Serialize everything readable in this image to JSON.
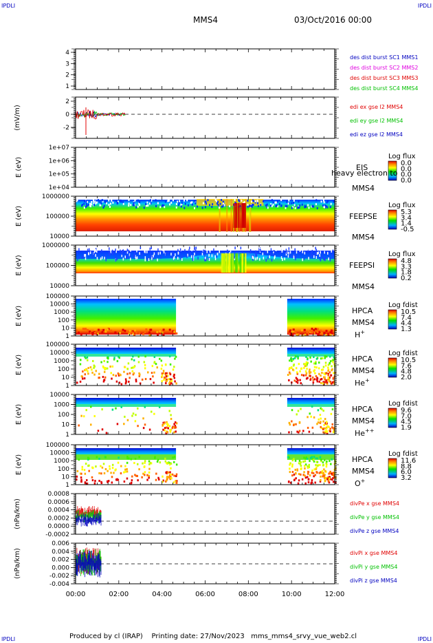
{
  "corner_label": "IPDLI",
  "header": {
    "spacecraft": "MMS4",
    "datetime": "03/Oct/2016 00:00"
  },
  "footer": "Produced by cl (IRAP)    Printing date: 27/Nov/2023   mms_mms4_srvy_vue_web2.cl",
  "colors": {
    "red": "#e00000",
    "green": "#00d000",
    "blue": "#0000c0",
    "magenta": "#e000e0",
    "dark_green": "#00c000"
  },
  "chart_data": [
    {
      "type": "line",
      "id": "burst",
      "yticks": [
        "4",
        "3",
        "2",
        "1"
      ],
      "ylim": [
        0.5,
        4.5
      ],
      "ylabel": "",
      "legend": [
        {
          "text": "des dist burst SC1 MMS1",
          "color": "#0000c0"
        },
        {
          "text": "des dist burst SC2 MMS2",
          "color": "#e000e0"
        },
        {
          "text": "des dist burst SC3 MMS3",
          "color": "#e00000"
        },
        {
          "text": "des dist burst SC4 MMS4",
          "color": "#00c000"
        }
      ]
    },
    {
      "type": "line",
      "id": "edi",
      "ylabel": "(mV/m)",
      "yticks": [
        "2",
        "0",
        "-2"
      ],
      "ylim": [
        -3,
        3
      ],
      "zero_line": true,
      "data_until_hour": 2.3,
      "legend": [
        {
          "text": "edi ex gse l2 MMS4",
          "color": "#e00000"
        },
        {
          "text": "edi ey gse l2 MMS4",
          "color": "#00c000"
        },
        {
          "text": "edi ez gse l2 MMS4",
          "color": "#0000c0"
        }
      ]
    },
    {
      "type": "heatmap",
      "id": "eis",
      "ylabel": "E (eV)",
      "yticks": [
        "1e+07",
        "1e+06",
        "1e+05",
        "1e+04"
      ],
      "instrument": "EIS",
      "spacecraft": "MMS4",
      "overlay_text": "heavy electron to",
      "colorbar": {
        "title": "Log flux",
        "ticks": [
          "0.0",
          "0.0",
          "0.0",
          "0.0"
        ]
      }
    },
    {
      "type": "heatmap",
      "id": "feepse",
      "ylabel": "E (eV)",
      "yticks": [
        "1000000",
        "100000",
        "10000"
      ],
      "instrument": "FEEPSE",
      "spacecraft": "MMS4",
      "colorbar": {
        "title": "Log flux",
        "ticks": [
          "5.3",
          "3.4",
          "1.4",
          "-0.5"
        ]
      }
    },
    {
      "type": "heatmap",
      "id": "feepsi",
      "ylabel": "E (eV)",
      "yticks": [
        "1000000",
        "100000",
        "10000"
      ],
      "instrument": "FEEPSI",
      "spacecraft": "MMS4",
      "colorbar": {
        "title": "Log flux",
        "ticks": [
          "4.8",
          "3.3",
          "1.8",
          "0.2"
        ]
      }
    },
    {
      "type": "heatmap",
      "id": "hpca_h",
      "ylabel": "E (eV)",
      "yticks": [
        "100000",
        "10000",
        "1000",
        "100",
        "10",
        "1"
      ],
      "instrument": "HPCA",
      "spacecraft": "MMS4",
      "species": "H",
      "species_sup": "+",
      "data_ranges_hours": [
        [
          0,
          4.65
        ],
        [
          9.8,
          12
        ]
      ],
      "colorbar": {
        "title": "Log fdist",
        "ticks": [
          "10.5",
          "7.4",
          "4.4",
          "1.3"
        ]
      }
    },
    {
      "type": "heatmap",
      "id": "hpca_he",
      "ylabel": "E (eV)",
      "yticks": [
        "100000",
        "10000",
        "1000",
        "100",
        "10",
        "1"
      ],
      "instrument": "HPCA",
      "spacecraft": "MMS4",
      "species": "He",
      "species_sup": "+",
      "data_ranges_hours": [
        [
          0,
          4.65
        ],
        [
          9.8,
          12
        ]
      ],
      "colorbar": {
        "title": "Log fdist",
        "ticks": [
          "10.5",
          "7.6",
          "4.8",
          "2.0"
        ]
      }
    },
    {
      "type": "heatmap",
      "id": "hpca_hepp",
      "ylabel": "E (eV)",
      "yticks": [
        "10000",
        "1000",
        "100",
        "10",
        "1"
      ],
      "instrument": "HPCA",
      "spacecraft": "MMS4",
      "species": "He",
      "species_sup": "++",
      "data_ranges_hours": [
        [
          0,
          4.65
        ],
        [
          9.8,
          12
        ]
      ],
      "colorbar": {
        "title": "Log fdist",
        "ticks": [
          "9.6",
          "7.0",
          "4.5",
          "1.9"
        ]
      }
    },
    {
      "type": "heatmap",
      "id": "hpca_o",
      "ylabel": "E (eV)",
      "yticks": [
        "100000",
        "10000",
        "1000",
        "100",
        "10",
        "1"
      ],
      "instrument": "HPCA",
      "spacecraft": "MMS4",
      "species": "O",
      "species_sup": "+",
      "data_ranges_hours": [
        [
          0,
          4.65
        ],
        [
          9.8,
          12
        ]
      ],
      "colorbar": {
        "title": "Log fdist",
        "ticks": [
          "11.6",
          "8.8",
          "6.0",
          "3.2"
        ]
      }
    },
    {
      "type": "line",
      "id": "divpe",
      "ylabel": "(nPa/km)",
      "yticks": [
        "0.0008",
        "0.0006",
        "0.0004",
        "0.0002",
        "0.0000",
        "-0.0002"
      ],
      "zero_line": true,
      "data_until_hour": 1.2,
      "legend": [
        {
          "text": "divPe x gse MMS4",
          "color": "#e00000"
        },
        {
          "text": "divPe y gse MMS4",
          "color": "#00c000"
        },
        {
          "text": "divPe z gse MMS4",
          "color": "#0000c0"
        }
      ]
    },
    {
      "type": "line",
      "id": "divpi",
      "ylabel": "(nPa/km)",
      "yticks": [
        "0.006",
        "0.004",
        "0.002",
        "0.000",
        "-0.002",
        "-0.004"
      ],
      "zero_line": true,
      "data_until_hour": 1.2,
      "legend": [
        {
          "text": "divPi x gse MMS4",
          "color": "#e00000"
        },
        {
          "text": "divPi y gse MMS4",
          "color": "#00c000"
        },
        {
          "text": "divPi z gse MMS4",
          "color": "#0000c0"
        }
      ]
    }
  ],
  "xaxis": {
    "ticks": [
      "00:00",
      "02:00",
      "04:00",
      "06:00",
      "08:00",
      "10:00",
      "12:00"
    ],
    "xlim_hours": [
      0,
      12
    ]
  }
}
